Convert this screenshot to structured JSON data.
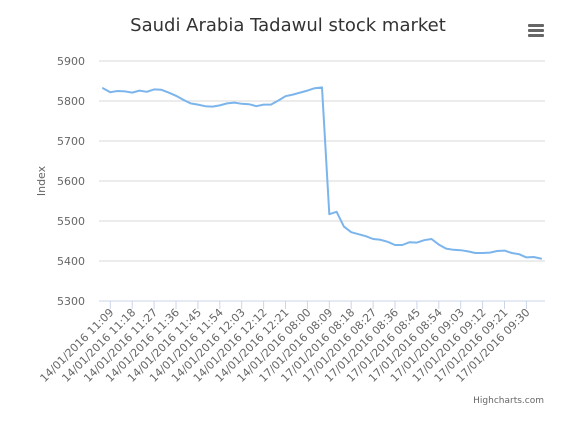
{
  "chart_data": {
    "type": "line",
    "title": "Saudi Arabia Tadawul stock market",
    "xlabel": "",
    "ylabel": "Index",
    "ylim": [
      5300,
      5900
    ],
    "yticks": [
      5300,
      5400,
      5500,
      5600,
      5700,
      5800,
      5900
    ],
    "xtick_labels": [
      "14/01/2016 11:09",
      "14/01/2016 11:18",
      "14/01/2016 11:27",
      "14/01/2016 11:36",
      "14/01/2016 11:45",
      "14/01/2016 11:54",
      "14/01/2016 12:03",
      "14/01/2016 12:12",
      "14/01/2016 12:21",
      "14/01/2016 08:00",
      "17/01/2016 08:09",
      "17/01/2016 08:18",
      "17/01/2016 08:27",
      "17/01/2016 08:36",
      "17/01/2016 08:45",
      "17/01/2016 08:54",
      "17/01/2016 09:03",
      "17/01/2016 09:12",
      "17/01/2016 09:21",
      "17/01/2016 09:30"
    ],
    "grid": "horizontal",
    "legend": "none",
    "series": [
      {
        "values": [
          5832,
          5822,
          5825,
          5824,
          5821,
          5826,
          5823,
          5829,
          5828,
          5821,
          5813,
          5803,
          5794,
          5791,
          5787,
          5786,
          5789,
          5794,
          5796,
          5793,
          5792,
          5787,
          5791,
          5791,
          5801,
          5812,
          5816,
          5821,
          5826,
          5832,
          5834,
          5517,
          5523,
          5486,
          5472,
          5467,
          5462,
          5455,
          5453,
          5448,
          5440,
          5440,
          5447,
          5446,
          5452,
          5455,
          5441,
          5431,
          5428,
          5427,
          5424,
          5420,
          5420,
          5421,
          5425,
          5426,
          5420,
          5417,
          5409,
          5410,
          5406
        ],
        "color": "#7cb5ec"
      }
    ]
  },
  "credits": "Highcharts.com",
  "menu_icon": "hamburger-menu-icon",
  "colors": {
    "line": "#7cb5ec",
    "grid": "#d8d8d8",
    "axis": "#ccd6eb",
    "label": "#666666",
    "title": "#333333"
  }
}
